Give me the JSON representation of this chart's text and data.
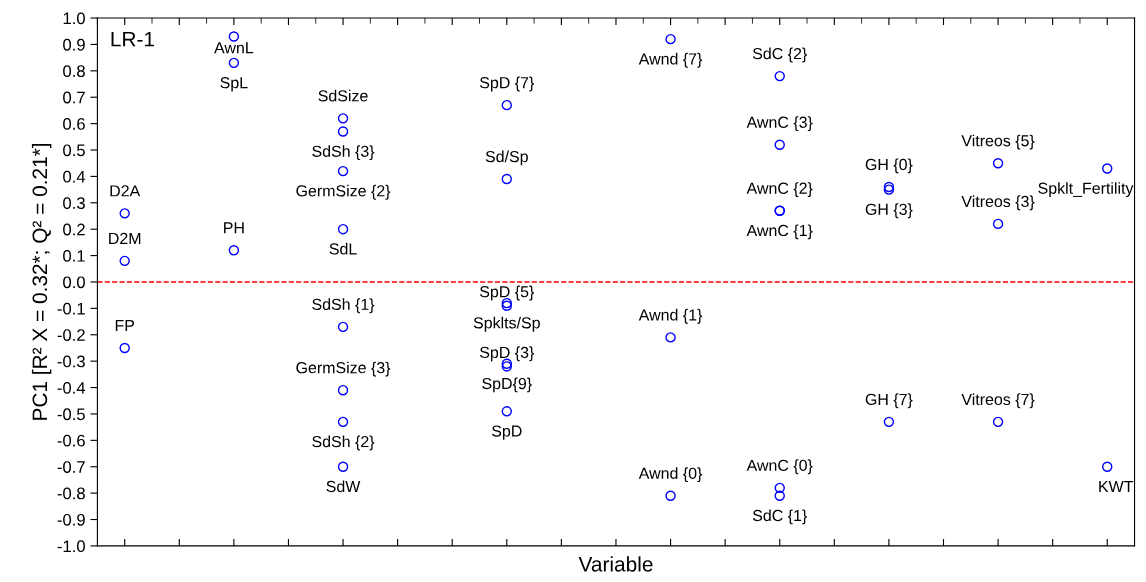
{
  "chart_data": {
    "type": "scatter",
    "xlabel": "Variable",
    "ylabel": "PC1 [R² X = 0.32*; Q² = 0.21*]",
    "annotations": [
      "LR-1"
    ],
    "categories": [
      null,
      null,
      null,
      null,
      null,
      null,
      null,
      null,
      null,
      null,
      null,
      null,
      null,
      null,
      null,
      null,
      null,
      null,
      null
    ],
    "ylim": [
      -1.0,
      1.0
    ],
    "yticks": [
      {
        "value": -1.0,
        "label": "-1.0"
      },
      {
        "value": -0.9,
        "label": "-0.9"
      },
      {
        "value": -0.8,
        "label": "-0.8"
      },
      {
        "value": -0.7,
        "label": "-0.7"
      },
      {
        "value": -0.6,
        "label": "-0.6"
      },
      {
        "value": -0.5,
        "label": "-0.5"
      },
      {
        "value": -0.4,
        "label": "-0.4"
      },
      {
        "value": -0.3,
        "label": "-0.3"
      },
      {
        "value": -0.2,
        "label": "-0.2"
      },
      {
        "value": -0.1,
        "label": "-0.1"
      },
      {
        "value": 0.0,
        "label": "0.0"
      },
      {
        "value": 0.1,
        "label": "0.1"
      },
      {
        "value": 0.2,
        "label": "0.2"
      },
      {
        "value": 0.3,
        "label": "0.3"
      },
      {
        "value": 0.4,
        "label": "0.4"
      },
      {
        "value": 0.5,
        "label": "0.5"
      },
      {
        "value": 0.6,
        "label": "0.6"
      },
      {
        "value": 0.7,
        "label": "0.7"
      },
      {
        "value": 0.8,
        "label": "0.8"
      },
      {
        "value": 0.9,
        "label": "0.9"
      },
      {
        "value": 1.0,
        "label": "1.0"
      }
    ],
    "grid": false,
    "legend": false,
    "marker": "circle",
    "ref_lines": [
      {
        "axis": "y",
        "value": 0,
        "label": null,
        "color": "#ff0000",
        "line_style": "dashed"
      }
    ],
    "series": [
      {
        "name": "D2A",
        "color": "#0000ff",
        "values": [
          0.26,
          null,
          null,
          null,
          null,
          null,
          null,
          null,
          null,
          null,
          null,
          null,
          null,
          null,
          null,
          null,
          null,
          null,
          null
        ]
      },
      {
        "name": "D2M",
        "color": "#0000ff",
        "values": [
          0.08,
          null,
          null,
          null,
          null,
          null,
          null,
          null,
          null,
          null,
          null,
          null,
          null,
          null,
          null,
          null,
          null,
          null,
          null
        ]
      },
      {
        "name": "FP",
        "color": "#0000ff",
        "values": [
          -0.25,
          null,
          null,
          null,
          null,
          null,
          null,
          null,
          null,
          null,
          null,
          null,
          null,
          null,
          null,
          null,
          null,
          null,
          null
        ]
      },
      {
        "name": "AwnL",
        "color": "#0000ff",
        "values": [
          null,
          null,
          0.93,
          null,
          null,
          null,
          null,
          null,
          null,
          null,
          null,
          null,
          null,
          null,
          null,
          null,
          null,
          null,
          null
        ]
      },
      {
        "name": "SpL",
        "color": "#0000ff",
        "values": [
          null,
          null,
          0.83,
          null,
          null,
          null,
          null,
          null,
          null,
          null,
          null,
          null,
          null,
          null,
          null,
          null,
          null,
          null,
          null
        ]
      },
      {
        "name": "PH",
        "color": "#0000ff",
        "values": [
          null,
          null,
          0.12,
          null,
          null,
          null,
          null,
          null,
          null,
          null,
          null,
          null,
          null,
          null,
          null,
          null,
          null,
          null,
          null
        ]
      },
      {
        "name": "SdSize",
        "color": "#0000ff",
        "values": [
          null,
          null,
          null,
          null,
          0.62,
          null,
          null,
          null,
          null,
          null,
          null,
          null,
          null,
          null,
          null,
          null,
          null,
          null,
          null
        ]
      },
      {
        "name": "SdSh {3}",
        "color": "#0000ff",
        "values": [
          null,
          null,
          null,
          null,
          0.57,
          null,
          null,
          null,
          null,
          null,
          null,
          null,
          null,
          null,
          null,
          null,
          null,
          null,
          null
        ]
      },
      {
        "name": "GermSize {2}",
        "color": "#0000ff",
        "values": [
          null,
          null,
          null,
          null,
          0.42,
          null,
          null,
          null,
          null,
          null,
          null,
          null,
          null,
          null,
          null,
          null,
          null,
          null,
          null
        ]
      },
      {
        "name": "SdL",
        "color": "#0000ff",
        "values": [
          null,
          null,
          null,
          null,
          0.2,
          null,
          null,
          null,
          null,
          null,
          null,
          null,
          null,
          null,
          null,
          null,
          null,
          null,
          null
        ]
      },
      {
        "name": "SdSh {1}",
        "color": "#0000ff",
        "values": [
          null,
          null,
          null,
          null,
          -0.17,
          null,
          null,
          null,
          null,
          null,
          null,
          null,
          null,
          null,
          null,
          null,
          null,
          null,
          null
        ]
      },
      {
        "name": "GermSize {3}",
        "color": "#0000ff",
        "values": [
          null,
          null,
          null,
          null,
          -0.41,
          null,
          null,
          null,
          null,
          null,
          null,
          null,
          null,
          null,
          null,
          null,
          null,
          null,
          null
        ]
      },
      {
        "name": "SdSh {2}",
        "color": "#0000ff",
        "values": [
          null,
          null,
          null,
          null,
          -0.53,
          null,
          null,
          null,
          null,
          null,
          null,
          null,
          null,
          null,
          null,
          null,
          null,
          null,
          null
        ]
      },
      {
        "name": "SdW",
        "color": "#0000ff",
        "values": [
          null,
          null,
          null,
          null,
          -0.7,
          null,
          null,
          null,
          null,
          null,
          null,
          null,
          null,
          null,
          null,
          null,
          null,
          null,
          null
        ]
      },
      {
        "name": "SpD {7}",
        "color": "#0000ff",
        "values": [
          null,
          null,
          null,
          null,
          null,
          null,
          null,
          0.67,
          null,
          null,
          null,
          null,
          null,
          null,
          null,
          null,
          null,
          null,
          null
        ]
      },
      {
        "name": "Sd/Sp",
        "color": "#0000ff",
        "values": [
          null,
          null,
          null,
          null,
          null,
          null,
          null,
          0.39,
          null,
          null,
          null,
          null,
          null,
          null,
          null,
          null,
          null,
          null,
          null
        ]
      },
      {
        "name": "Spklts/Sp",
        "color": "#0000ff",
        "values": [
          null,
          null,
          null,
          null,
          null,
          null,
          null,
          -0.08,
          null,
          null,
          null,
          null,
          null,
          null,
          null,
          null,
          null,
          null,
          null
        ]
      },
      {
        "name": "SpD {5}",
        "color": "#0000ff",
        "values": [
          null,
          null,
          null,
          null,
          null,
          null,
          null,
          -0.09,
          null,
          null,
          null,
          null,
          null,
          null,
          null,
          null,
          null,
          null,
          null
        ]
      },
      {
        "name": "SpD{9}",
        "color": "#0000ff",
        "values": [
          null,
          null,
          null,
          null,
          null,
          null,
          null,
          -0.31,
          null,
          null,
          null,
          null,
          null,
          null,
          null,
          null,
          null,
          null,
          null
        ]
      },
      {
        "name": "SpD {3}",
        "color": "#0000ff",
        "values": [
          null,
          null,
          null,
          null,
          null,
          null,
          null,
          -0.32,
          null,
          null,
          null,
          null,
          null,
          null,
          null,
          null,
          null,
          null,
          null
        ]
      },
      {
        "name": "SpD",
        "color": "#0000ff",
        "values": [
          null,
          null,
          null,
          null,
          null,
          null,
          null,
          -0.49,
          null,
          null,
          null,
          null,
          null,
          null,
          null,
          null,
          null,
          null,
          null
        ]
      },
      {
        "name": "Awnd {7}",
        "color": "#0000ff",
        "values": [
          null,
          null,
          null,
          null,
          null,
          null,
          null,
          null,
          null,
          null,
          0.92,
          null,
          null,
          null,
          null,
          null,
          null,
          null,
          null
        ]
      },
      {
        "name": "Awnd {1}",
        "color": "#0000ff",
        "values": [
          null,
          null,
          null,
          null,
          null,
          null,
          null,
          null,
          null,
          null,
          -0.21,
          null,
          null,
          null,
          null,
          null,
          null,
          null,
          null
        ]
      },
      {
        "name": "Awnd {0}",
        "color": "#0000ff",
        "values": [
          null,
          null,
          null,
          null,
          null,
          null,
          null,
          null,
          null,
          null,
          -0.81,
          null,
          null,
          null,
          null,
          null,
          null,
          null,
          null
        ]
      },
      {
        "name": "SdC {2}",
        "color": "#0000ff",
        "values": [
          null,
          null,
          null,
          null,
          null,
          null,
          null,
          null,
          null,
          null,
          null,
          null,
          0.78,
          null,
          null,
          null,
          null,
          null,
          null
        ]
      },
      {
        "name": "AwnC {3}",
        "color": "#0000ff",
        "values": [
          null,
          null,
          null,
          null,
          null,
          null,
          null,
          null,
          null,
          null,
          null,
          null,
          0.52,
          null,
          null,
          null,
          null,
          null,
          null
        ]
      },
      {
        "name": "AwnC {2}",
        "color": "#0000ff",
        "values": [
          null,
          null,
          null,
          null,
          null,
          null,
          null,
          null,
          null,
          null,
          null,
          null,
          0.27,
          null,
          null,
          null,
          null,
          null,
          null
        ]
      },
      {
        "name": "AwnC {1}",
        "color": "#0000ff",
        "values": [
          null,
          null,
          null,
          null,
          null,
          null,
          null,
          null,
          null,
          null,
          null,
          null,
          0.27,
          null,
          null,
          null,
          null,
          null,
          null
        ]
      },
      {
        "name": "AwnC {0}",
        "color": "#0000ff",
        "values": [
          null,
          null,
          null,
          null,
          null,
          null,
          null,
          null,
          null,
          null,
          null,
          null,
          -0.78,
          null,
          null,
          null,
          null,
          null,
          null
        ]
      },
      {
        "name": "SdC {1}",
        "color": "#0000ff",
        "values": [
          null,
          null,
          null,
          null,
          null,
          null,
          null,
          null,
          null,
          null,
          null,
          null,
          -0.81,
          null,
          null,
          null,
          null,
          null,
          null
        ]
      },
      {
        "name": "GH {0}",
        "color": "#0000ff",
        "values": [
          null,
          null,
          null,
          null,
          null,
          null,
          null,
          null,
          null,
          null,
          null,
          null,
          null,
          null,
          0.36,
          null,
          null,
          null,
          null
        ]
      },
      {
        "name": "GH {3}",
        "color": "#0000ff",
        "values": [
          null,
          null,
          null,
          null,
          null,
          null,
          null,
          null,
          null,
          null,
          null,
          null,
          null,
          null,
          0.35,
          null,
          null,
          null,
          null
        ]
      },
      {
        "name": "GH {7}",
        "color": "#0000ff",
        "values": [
          null,
          null,
          null,
          null,
          null,
          null,
          null,
          null,
          null,
          null,
          null,
          null,
          null,
          null,
          -0.53,
          null,
          null,
          null,
          null
        ]
      },
      {
        "name": "Vitreos {5}",
        "color": "#0000ff",
        "values": [
          null,
          null,
          null,
          null,
          null,
          null,
          null,
          null,
          null,
          null,
          null,
          null,
          null,
          null,
          null,
          null,
          0.45,
          null,
          null
        ]
      },
      {
        "name": "Vitreos {3}",
        "color": "#0000ff",
        "values": [
          null,
          null,
          null,
          null,
          null,
          null,
          null,
          null,
          null,
          null,
          null,
          null,
          null,
          null,
          null,
          null,
          0.22,
          null,
          null
        ]
      },
      {
        "name": "Vitreos {7}",
        "color": "#0000ff",
        "values": [
          null,
          null,
          null,
          null,
          null,
          null,
          null,
          null,
          null,
          null,
          null,
          null,
          null,
          null,
          null,
          null,
          -0.53,
          null,
          null
        ]
      },
      {
        "name": "Spklt_Fertility",
        "color": "#0000ff",
        "values": [
          null,
          null,
          null,
          null,
          null,
          null,
          null,
          null,
          null,
          null,
          null,
          null,
          null,
          null,
          null,
          null,
          null,
          null,
          0.43
        ]
      },
      {
        "name": "KWT",
        "color": "#0000ff",
        "values": [
          null,
          null,
          null,
          null,
          null,
          null,
          null,
          null,
          null,
          null,
          null,
          null,
          null,
          null,
          null,
          null,
          null,
          null,
          -0.7
        ]
      }
    ]
  }
}
